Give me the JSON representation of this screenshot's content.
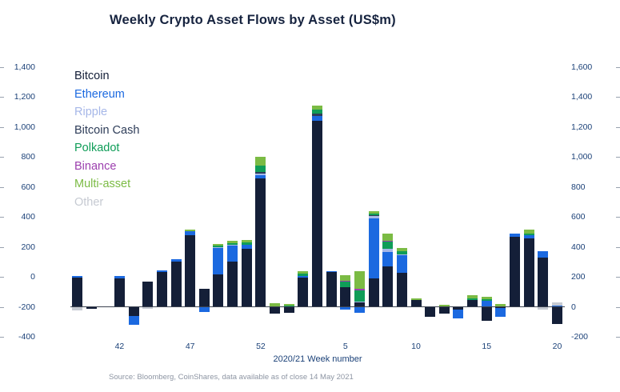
{
  "page": {
    "title": "Weekly Crypto Asset Flows by Asset (US$m)",
    "source": "Source: Bloomberg, CoinShares, data available as of close 14 May 2021"
  },
  "chart_data": {
    "type": "bar",
    "stacked": true,
    "title": "Weekly Crypto Asset Flows by Asset (US$m)",
    "xlabel": "2020/21 Week number",
    "legend_position": "top-left",
    "grid": false,
    "axis_left": {
      "min": -400,
      "max": 1400,
      "step": 200
    },
    "axis_right": {
      "min": -200,
      "max": 1600,
      "step": 200
    },
    "bars_plotted_on": "right",
    "ylabel_left_ticks": [
      "1,400",
      "1,200",
      "1,000",
      "800",
      "600",
      "400",
      "200",
      "0",
      "-200",
      "-400"
    ],
    "ylabel_right_ticks": [
      "1,600",
      "1,400",
      "1,200",
      "1,000",
      "800",
      "600",
      "400",
      "200",
      "0",
      "-200"
    ],
    "categories": [
      "39",
      "40",
      "41",
      "42",
      "43",
      "44",
      "45",
      "46",
      "47",
      "48",
      "49",
      "50",
      "51",
      "52",
      "53",
      "1",
      "2",
      "3",
      "4",
      "5",
      "6",
      "7",
      "8",
      "9",
      "10",
      "11",
      "12",
      "13",
      "14",
      "15",
      "16",
      "17",
      "18",
      "19",
      "20"
    ],
    "x_tick_labels_shown": [
      "42",
      "47",
      "52",
      "5",
      "10",
      "15",
      "20"
    ],
    "series": [
      {
        "name": "Bitcoin",
        "color": "#141f38",
        "values": [
          195,
          -12,
          0,
          190,
          -60,
          170,
          230,
          300,
          480,
          120,
          215,
          300,
          390,
          860,
          -45,
          -40,
          195,
          1240,
          230,
          130,
          30,
          190,
          270,
          225,
          45,
          -65,
          -45,
          -20,
          45,
          -95,
          -10,
          470,
          455,
          330,
          -115
        ]
      },
      {
        "name": "Ethereum",
        "color": "#1b69e0",
        "values": [
          10,
          0,
          0,
          15,
          -60,
          0,
          15,
          20,
          25,
          -35,
          180,
          110,
          25,
          20,
          0,
          0,
          10,
          35,
          10,
          -20,
          -40,
          400,
          95,
          120,
          0,
          0,
          0,
          -55,
          0,
          40,
          -55,
          20,
          25,
          40,
          10
        ]
      },
      {
        "name": "Ripple",
        "color": "#a6b7e8",
        "values": [
          0,
          0,
          0,
          0,
          0,
          0,
          0,
          0,
          0,
          0,
          5,
          5,
          0,
          10,
          0,
          0,
          0,
          0,
          0,
          0,
          5,
          15,
          25,
          5,
          0,
          0,
          0,
          0,
          0,
          0,
          0,
          0,
          0,
          0,
          0
        ]
      },
      {
        "name": "Bitcoin Cash",
        "color": "#2e3d59",
        "values": [
          0,
          0,
          0,
          0,
          0,
          0,
          0,
          0,
          0,
          0,
          0,
          0,
          0,
          10,
          0,
          0,
          0,
          15,
          0,
          0,
          0,
          5,
          0,
          0,
          0,
          0,
          0,
          0,
          0,
          0,
          0,
          0,
          0,
          0,
          0
        ]
      },
      {
        "name": "Polkadot",
        "color": "#0f9d58",
        "values": [
          0,
          0,
          0,
          0,
          0,
          0,
          0,
          0,
          0,
          0,
          10,
          10,
          15,
          45,
          0,
          8,
          15,
          25,
          0,
          40,
          75,
          15,
          45,
          20,
          0,
          0,
          0,
          0,
          12,
          10,
          0,
          0,
          10,
          0,
          0
        ]
      },
      {
        "name": "Binance",
        "color": "#9c3fae",
        "values": [
          0,
          0,
          0,
          0,
          0,
          0,
          0,
          0,
          0,
          0,
          0,
          0,
          0,
          0,
          0,
          0,
          0,
          0,
          0,
          5,
          10,
          0,
          5,
          0,
          0,
          0,
          0,
          0,
          0,
          0,
          0,
          0,
          0,
          0,
          0
        ]
      },
      {
        "name": "Multi-asset",
        "color": "#7bbb44",
        "values": [
          0,
          0,
          0,
          0,
          0,
          0,
          0,
          0,
          10,
          0,
          10,
          15,
          15,
          55,
          25,
          10,
          20,
          30,
          0,
          35,
          120,
          15,
          50,
          25,
          10,
          0,
          12,
          0,
          22,
          15,
          18,
          0,
          25,
          0,
          0
        ]
      },
      {
        "name": "Other",
        "color": "#c6cad2",
        "values": [
          -25,
          0,
          0,
          0,
          0,
          -15,
          0,
          0,
          0,
          0,
          0,
          0,
          0,
          0,
          0,
          0,
          0,
          0,
          0,
          0,
          0,
          0,
          0,
          0,
          0,
          0,
          0,
          0,
          0,
          0,
          0,
          0,
          0,
          -20,
          18
        ]
      }
    ]
  }
}
